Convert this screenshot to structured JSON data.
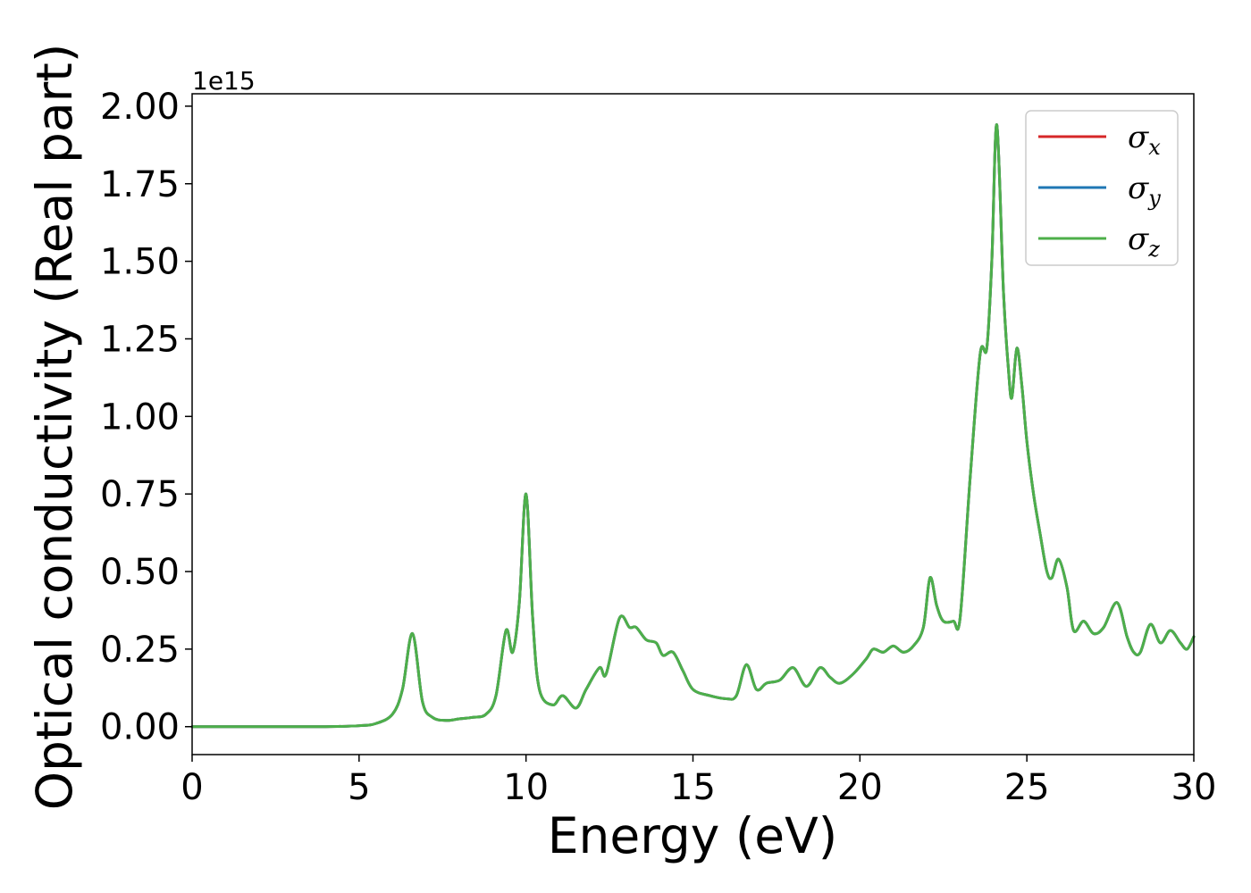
{
  "chart_data": {
    "type": "line",
    "title": "",
    "xlabel": "Energy (eV)",
    "ylabel": "Optical conductivity (Real part)",
    "y_offset_label": "1e15",
    "xlim": [
      0,
      30
    ],
    "ylim": [
      -0.09,
      2.04
    ],
    "xticks": [
      0,
      5,
      10,
      15,
      20,
      25,
      30
    ],
    "xtick_labels": [
      "0",
      "5",
      "10",
      "15",
      "20",
      "25",
      "30"
    ],
    "yticks": [
      0.0,
      0.25,
      0.5,
      0.75,
      1.0,
      1.25,
      1.5,
      1.75,
      2.0
    ],
    "ytick_labels": [
      "0.00",
      "0.25",
      "0.50",
      "0.75",
      "1.00",
      "1.25",
      "1.50",
      "1.75",
      "2.00"
    ],
    "grid": false,
    "legend_position": "top-right",
    "series": [
      {
        "name": "σx",
        "symbol": "σ",
        "subscript": "x",
        "color": "#d62728",
        "x": [
          0,
          1,
          2,
          3,
          4,
          5,
          5.5,
          6,
          6.3,
          6.6,
          6.9,
          7.2,
          7.6,
          8,
          8.4,
          8.8,
          9.1,
          9.4,
          9.6,
          9.8,
          10,
          10.2,
          10.4,
          10.8,
          11.1,
          11.5,
          11.8,
          12.2,
          12.4,
          12.8,
          13.1,
          13.3,
          13.6,
          13.9,
          14.1,
          14.4,
          14.7,
          15,
          15.5,
          16,
          16.3,
          16.6,
          16.9,
          17.2,
          17.6,
          18,
          18.4,
          18.8,
          19.1,
          19.4,
          19.8,
          20.2,
          20.4,
          20.7,
          21,
          21.3,
          21.6,
          21.9,
          22.1,
          22.3,
          22.5,
          22.8,
          23,
          23.3,
          23.6,
          23.8,
          23.95,
          24.1,
          24.3,
          24.45,
          24.55,
          24.7,
          24.85,
          25,
          25.2,
          25.4,
          25.6,
          25.75,
          25.95,
          26.2,
          26.4,
          26.7,
          27,
          27.3,
          27.7,
          28,
          28.2,
          28.4,
          28.7,
          29,
          29.3,
          29.6,
          29.8,
          30
        ],
        "y": [
          0,
          0,
          0,
          0,
          0,
          0.003,
          0.01,
          0.04,
          0.12,
          0.3,
          0.08,
          0.03,
          0.02,
          0.025,
          0.03,
          0.04,
          0.1,
          0.31,
          0.24,
          0.4,
          0.75,
          0.35,
          0.12,
          0.07,
          0.1,
          0.06,
          0.12,
          0.19,
          0.17,
          0.35,
          0.32,
          0.32,
          0.28,
          0.27,
          0.23,
          0.24,
          0.18,
          0.12,
          0.1,
          0.09,
          0.1,
          0.2,
          0.12,
          0.14,
          0.15,
          0.19,
          0.13,
          0.19,
          0.16,
          0.14,
          0.17,
          0.22,
          0.25,
          0.24,
          0.26,
          0.24,
          0.26,
          0.32,
          0.48,
          0.39,
          0.34,
          0.34,
          0.35,
          0.8,
          1.2,
          1.22,
          1.5,
          1.94,
          1.4,
          1.15,
          1.06,
          1.22,
          1.1,
          0.92,
          0.75,
          0.62,
          0.5,
          0.48,
          0.54,
          0.45,
          0.31,
          0.34,
          0.3,
          0.32,
          0.4,
          0.29,
          0.24,
          0.24,
          0.33,
          0.27,
          0.31,
          0.27,
          0.25,
          0.29
        ]
      },
      {
        "name": "σy",
        "symbol": "σ",
        "subscript": "y",
        "color": "#1f77b4",
        "x": [
          0,
          1,
          2,
          3,
          4,
          5,
          5.5,
          6,
          6.3,
          6.6,
          6.9,
          7.2,
          7.6,
          8,
          8.4,
          8.8,
          9.1,
          9.4,
          9.6,
          9.8,
          10,
          10.2,
          10.4,
          10.8,
          11.1,
          11.5,
          11.8,
          12.2,
          12.4,
          12.8,
          13.1,
          13.3,
          13.6,
          13.9,
          14.1,
          14.4,
          14.7,
          15,
          15.5,
          16,
          16.3,
          16.6,
          16.9,
          17.2,
          17.6,
          18,
          18.4,
          18.8,
          19.1,
          19.4,
          19.8,
          20.2,
          20.4,
          20.7,
          21,
          21.3,
          21.6,
          21.9,
          22.1,
          22.3,
          22.5,
          22.8,
          23,
          23.3,
          23.6,
          23.8,
          23.95,
          24.1,
          24.3,
          24.45,
          24.55,
          24.7,
          24.85,
          25,
          25.2,
          25.4,
          25.6,
          25.75,
          25.95,
          26.2,
          26.4,
          26.7,
          27,
          27.3,
          27.7,
          28,
          28.2,
          28.4,
          28.7,
          29,
          29.3,
          29.6,
          29.8,
          30
        ],
        "y": [
          0,
          0,
          0,
          0,
          0,
          0.003,
          0.01,
          0.04,
          0.12,
          0.3,
          0.08,
          0.03,
          0.02,
          0.025,
          0.03,
          0.04,
          0.1,
          0.31,
          0.24,
          0.4,
          0.75,
          0.35,
          0.12,
          0.07,
          0.1,
          0.06,
          0.12,
          0.19,
          0.17,
          0.35,
          0.32,
          0.32,
          0.28,
          0.27,
          0.23,
          0.24,
          0.18,
          0.12,
          0.1,
          0.09,
          0.1,
          0.2,
          0.12,
          0.14,
          0.15,
          0.19,
          0.13,
          0.19,
          0.16,
          0.14,
          0.17,
          0.22,
          0.25,
          0.24,
          0.26,
          0.24,
          0.26,
          0.32,
          0.48,
          0.39,
          0.34,
          0.34,
          0.35,
          0.8,
          1.2,
          1.22,
          1.5,
          1.94,
          1.4,
          1.15,
          1.06,
          1.22,
          1.1,
          0.92,
          0.75,
          0.62,
          0.5,
          0.48,
          0.54,
          0.45,
          0.31,
          0.34,
          0.3,
          0.32,
          0.4,
          0.29,
          0.24,
          0.24,
          0.33,
          0.27,
          0.31,
          0.27,
          0.25,
          0.29
        ]
      },
      {
        "name": "σz",
        "symbol": "σ",
        "subscript": "z",
        "color": "#4daf4a",
        "x": [
          0,
          1,
          2,
          3,
          4,
          5,
          5.5,
          6,
          6.3,
          6.6,
          6.9,
          7.2,
          7.6,
          8,
          8.4,
          8.8,
          9.1,
          9.4,
          9.6,
          9.8,
          10,
          10.2,
          10.4,
          10.8,
          11.1,
          11.5,
          11.8,
          12.2,
          12.4,
          12.8,
          13.1,
          13.3,
          13.6,
          13.9,
          14.1,
          14.4,
          14.7,
          15,
          15.5,
          16,
          16.3,
          16.6,
          16.9,
          17.2,
          17.6,
          18,
          18.4,
          18.8,
          19.1,
          19.4,
          19.8,
          20.2,
          20.4,
          20.7,
          21,
          21.3,
          21.6,
          21.9,
          22.1,
          22.3,
          22.5,
          22.8,
          23,
          23.3,
          23.6,
          23.8,
          23.95,
          24.1,
          24.3,
          24.45,
          24.55,
          24.7,
          24.85,
          25,
          25.2,
          25.4,
          25.6,
          25.75,
          25.95,
          26.2,
          26.4,
          26.7,
          27,
          27.3,
          27.7,
          28,
          28.2,
          28.4,
          28.7,
          29,
          29.3,
          29.6,
          29.8,
          30
        ],
        "y": [
          0,
          0,
          0,
          0,
          0,
          0.003,
          0.01,
          0.04,
          0.12,
          0.3,
          0.08,
          0.03,
          0.02,
          0.025,
          0.03,
          0.04,
          0.1,
          0.31,
          0.24,
          0.4,
          0.75,
          0.35,
          0.12,
          0.07,
          0.1,
          0.06,
          0.12,
          0.19,
          0.17,
          0.35,
          0.32,
          0.32,
          0.28,
          0.27,
          0.23,
          0.24,
          0.18,
          0.12,
          0.1,
          0.09,
          0.1,
          0.2,
          0.12,
          0.14,
          0.15,
          0.19,
          0.13,
          0.19,
          0.16,
          0.14,
          0.17,
          0.22,
          0.25,
          0.24,
          0.26,
          0.24,
          0.26,
          0.32,
          0.48,
          0.39,
          0.34,
          0.34,
          0.35,
          0.8,
          1.2,
          1.22,
          1.5,
          1.94,
          1.4,
          1.15,
          1.06,
          1.22,
          1.1,
          0.92,
          0.75,
          0.62,
          0.5,
          0.48,
          0.54,
          0.45,
          0.31,
          0.34,
          0.3,
          0.32,
          0.4,
          0.29,
          0.24,
          0.24,
          0.33,
          0.27,
          0.31,
          0.27,
          0.25,
          0.29
        ]
      }
    ]
  }
}
